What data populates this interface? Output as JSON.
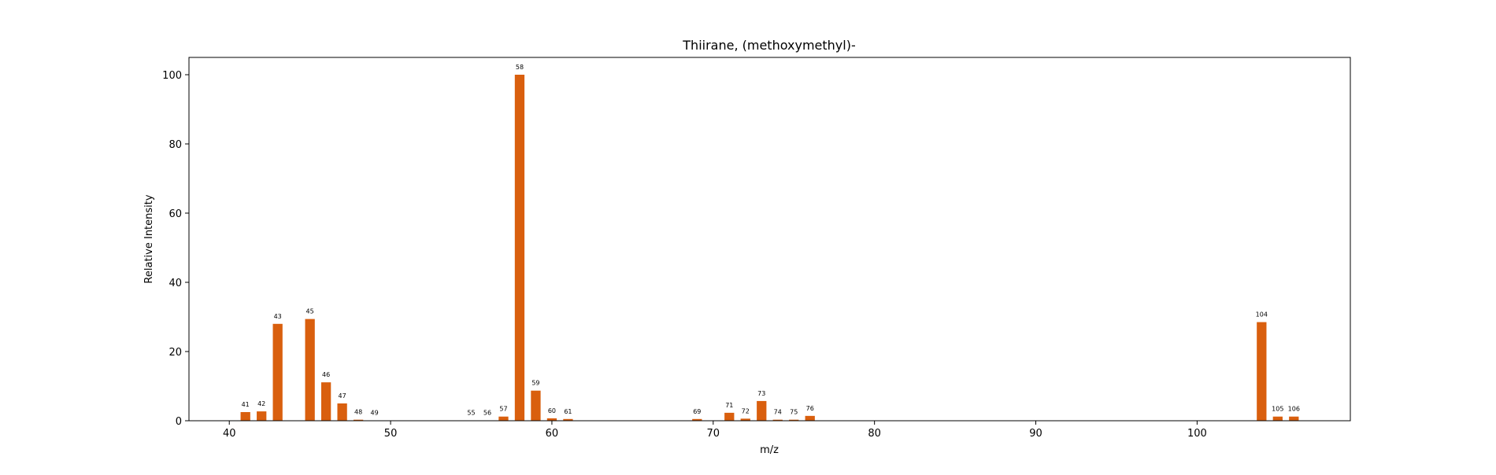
{
  "chart_data": {
    "type": "bar",
    "title": "Thiirane, (methoxymethyl)-",
    "xlabel": "m/z",
    "ylabel": "Relative Intensity",
    "xlim": [
      37.5,
      109.5
    ],
    "ylim": [
      0,
      105
    ],
    "xticks": [
      40,
      50,
      60,
      70,
      80,
      90,
      100
    ],
    "yticks": [
      0,
      20,
      40,
      60,
      80,
      100
    ],
    "bar_color": "#d95f0e",
    "grid": false,
    "legend": "none",
    "peaks": [
      {
        "mz": 41,
        "intensity": 2.5,
        "label": "41"
      },
      {
        "mz": 42,
        "intensity": 2.7,
        "label": "42"
      },
      {
        "mz": 43,
        "intensity": 28.0,
        "label": "43"
      },
      {
        "mz": 45,
        "intensity": 29.4,
        "label": "45"
      },
      {
        "mz": 46,
        "intensity": 11.1,
        "label": "46"
      },
      {
        "mz": 47,
        "intensity": 5.0,
        "label": "47"
      },
      {
        "mz": 48,
        "intensity": 0.3,
        "label": "48"
      },
      {
        "mz": 49,
        "intensity": 0.1,
        "label": "49"
      },
      {
        "mz": 55,
        "intensity": 0.1,
        "label": "55"
      },
      {
        "mz": 56,
        "intensity": 0.1,
        "label": "56"
      },
      {
        "mz": 57,
        "intensity": 1.2,
        "label": "57"
      },
      {
        "mz": 58,
        "intensity": 100.0,
        "label": "58"
      },
      {
        "mz": 59,
        "intensity": 8.7,
        "label": "59"
      },
      {
        "mz": 60,
        "intensity": 0.7,
        "label": "60"
      },
      {
        "mz": 61,
        "intensity": 0.5,
        "label": "61"
      },
      {
        "mz": 69,
        "intensity": 0.5,
        "label": "69"
      },
      {
        "mz": 71,
        "intensity": 2.3,
        "label": "71"
      },
      {
        "mz": 72,
        "intensity": 0.6,
        "label": "72"
      },
      {
        "mz": 73,
        "intensity": 5.7,
        "label": "73"
      },
      {
        "mz": 74,
        "intensity": 0.3,
        "label": "74"
      },
      {
        "mz": 75,
        "intensity": 0.3,
        "label": "75"
      },
      {
        "mz": 76,
        "intensity": 1.4,
        "label": "76"
      },
      {
        "mz": 104,
        "intensity": 28.5,
        "label": "104"
      },
      {
        "mz": 105,
        "intensity": 1.2,
        "label": "105"
      },
      {
        "mz": 106,
        "intensity": 1.2,
        "label": "106"
      }
    ]
  }
}
